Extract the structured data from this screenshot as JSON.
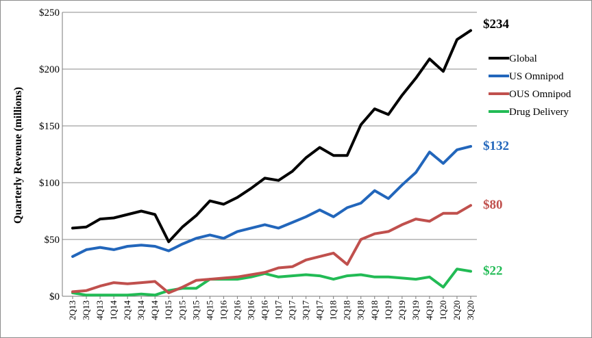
{
  "chart_data": {
    "type": "line",
    "ylabel": "Quarterly Revenue (millions)",
    "ylim": [
      0,
      250
    ],
    "yticks": [
      0,
      50,
      100,
      150,
      200,
      250
    ],
    "ytick_labels": [
      "$0",
      "$50",
      "$100",
      "$150",
      "$200",
      "$250"
    ],
    "grid": true,
    "legend_position": "right",
    "x": [
      "2Q13",
      "3Q13",
      "4Q13",
      "1Q14",
      "2Q14",
      "3Q14",
      "4Q14",
      "1Q15",
      "2Q15",
      "3Q15",
      "4Q15",
      "1Q16",
      "2Q16",
      "3Q16",
      "4Q16",
      "1Q17",
      "2Q17",
      "3Q17",
      "4Q17",
      "1Q18",
      "2Q18",
      "3Q18",
      "4Q18",
      "1Q19",
      "2Q19",
      "3Q19",
      "4Q19",
      "1Q20",
      "2Q20",
      "3Q20"
    ],
    "series": [
      {
        "name": "Global",
        "color": "#000000",
        "end_label": "$234",
        "values": [
          60,
          61,
          68,
          69,
          72,
          75,
          72,
          48,
          61,
          71,
          84,
          81,
          87,
          95,
          104,
          102,
          110,
          122,
          131,
          124,
          124,
          151,
          165,
          160,
          177,
          192,
          209,
          198,
          226,
          234
        ]
      },
      {
        "name": "US Omnipod",
        "color": "#2266bb",
        "end_label": "$132",
        "values": [
          35,
          41,
          43,
          41,
          44,
          45,
          44,
          40,
          46,
          51,
          54,
          51,
          57,
          60,
          63,
          60,
          65,
          70,
          76,
          70,
          78,
          82,
          93,
          86,
          98,
          109,
          127,
          117,
          129,
          132
        ]
      },
      {
        "name": "OUS Omnipod",
        "color": "#c0504d",
        "end_label": "$80",
        "values": [
          4,
          5,
          9,
          12,
          11,
          12,
          13,
          3,
          8,
          14,
          15,
          16,
          17,
          19,
          21,
          25,
          26,
          32,
          35,
          38,
          28,
          50,
          55,
          57,
          63,
          68,
          66,
          73,
          73,
          80
        ]
      },
      {
        "name": "Drug Delivery",
        "color": "#22bb55",
        "end_label": "$22",
        "values": [
          3,
          1,
          1,
          1,
          1,
          2,
          1,
          5,
          7,
          7,
          15,
          15,
          15,
          17,
          20,
          17,
          18,
          19,
          18,
          15,
          18,
          19,
          17,
          17,
          16,
          15,
          17,
          8,
          24,
          22
        ]
      }
    ]
  }
}
